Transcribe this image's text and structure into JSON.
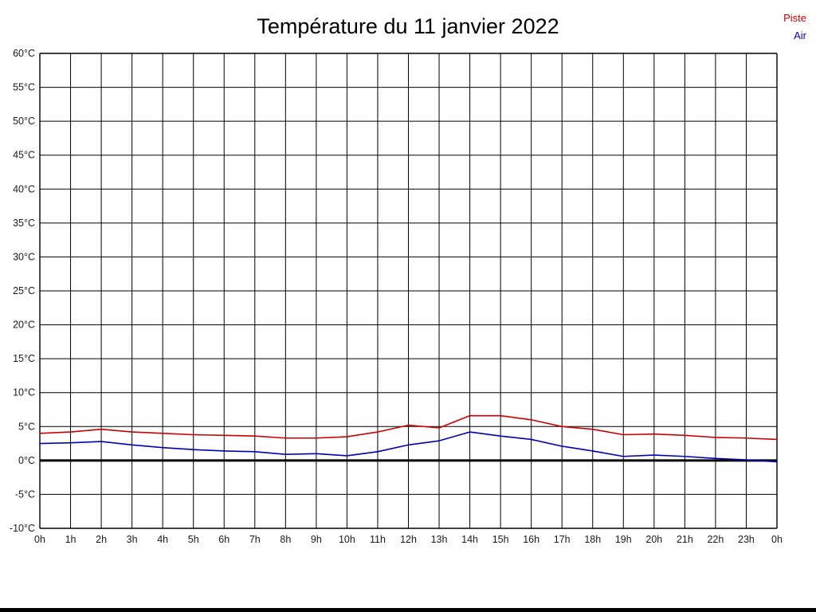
{
  "chart_data": {
    "type": "line",
    "title": "Température du 11 janvier 2022",
    "x_labels": [
      "0h",
      "1h",
      "2h",
      "3h",
      "4h",
      "5h",
      "6h",
      "7h",
      "8h",
      "9h",
      "10h",
      "11h",
      "12h",
      "13h",
      "14h",
      "15h",
      "16h",
      "17h",
      "18h",
      "19h",
      "20h",
      "21h",
      "22h",
      "23h",
      "0h"
    ],
    "xlabel": "",
    "ylabel": "",
    "y_unit": "°C",
    "ylim": [
      -10,
      60
    ],
    "ytick_step": 5,
    "grid": "on",
    "legend_position": "top-right",
    "zero_line": {
      "value": 0,
      "color": "#000000",
      "width": 3
    },
    "grid_color": "#000000",
    "label_color": "#1a1a1a",
    "series": [
      {
        "name": "Piste",
        "color": "#cc0000",
        "values": [
          4.0,
          4.2,
          4.6,
          4.2,
          4.0,
          3.8,
          3.7,
          3.6,
          3.3,
          3.3,
          3.5,
          4.2,
          5.2,
          4.8,
          6.6,
          6.6,
          6.0,
          5.0,
          4.6,
          3.8,
          3.9,
          3.7,
          3.4,
          3.3,
          3.1
        ]
      },
      {
        "name": "Air",
        "color": "#0000bb",
        "values": [
          2.5,
          2.6,
          2.8,
          2.3,
          1.9,
          1.6,
          1.4,
          1.3,
          0.9,
          1.0,
          0.7,
          1.3,
          2.3,
          2.9,
          4.2,
          3.6,
          3.1,
          2.1,
          1.4,
          0.6,
          0.8,
          0.6,
          0.3,
          0.1,
          -0.2
        ]
      }
    ]
  }
}
